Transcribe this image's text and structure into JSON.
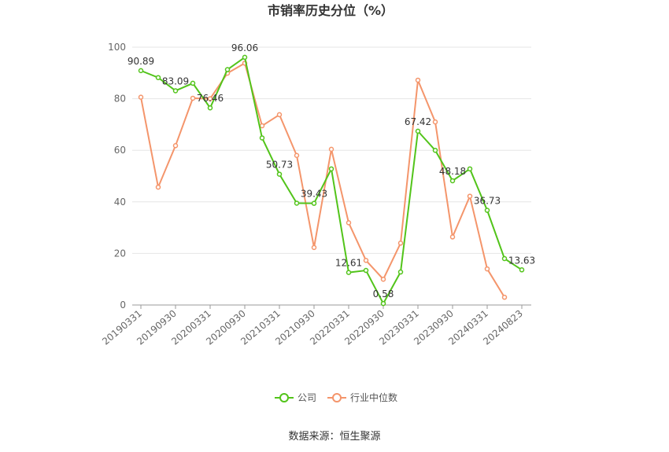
{
  "chart_data": {
    "type": "line",
    "title": "市销率历史分位（%）",
    "xlabel": "",
    "ylabel": "",
    "ylim": [
      0,
      100
    ],
    "yticks": [
      0,
      20,
      40,
      60,
      80,
      100
    ],
    "grid": true,
    "legend_position": "bottom",
    "x_tick_labels": [
      "20190331",
      "20190930",
      "20200331",
      "20200930",
      "20210331",
      "20210930",
      "20220331",
      "20220930",
      "20230331",
      "20230930",
      "20240331",
      "20240823"
    ],
    "series": [
      {
        "name": "公司",
        "color": "#52c41a",
        "values": [
          90.89,
          88.2,
          83.09,
          86.0,
          76.46,
          91.3,
          96.06,
          64.8,
          50.73,
          39.5,
          39.43,
          52.8,
          12.61,
          13.4,
          0.58,
          12.8,
          67.42,
          60.0,
          48.18,
          52.8,
          36.73,
          18.0,
          13.63
        ],
        "labels": [
          "90.89",
          "",
          "83.09",
          "",
          "76.46",
          "",
          "96.06",
          "",
          "50.73",
          "",
          "39.43",
          "",
          "12.61",
          "",
          "0.58",
          "",
          "67.42",
          "",
          "48.18",
          "",
          "36.73",
          "",
          "13.63"
        ]
      },
      {
        "name": "行业中位数",
        "color": "#f4956b",
        "values": [
          80.6,
          45.7,
          61.8,
          80.2,
          80.0,
          89.9,
          93.8,
          69.5,
          73.8,
          58.0,
          22.3,
          60.4,
          31.9,
          17.3,
          10.0,
          24.0,
          87.2,
          71.0,
          26.4,
          42.2,
          14.0,
          3.0,
          null
        ]
      }
    ]
  },
  "source_text": "数据来源：恒生聚源"
}
